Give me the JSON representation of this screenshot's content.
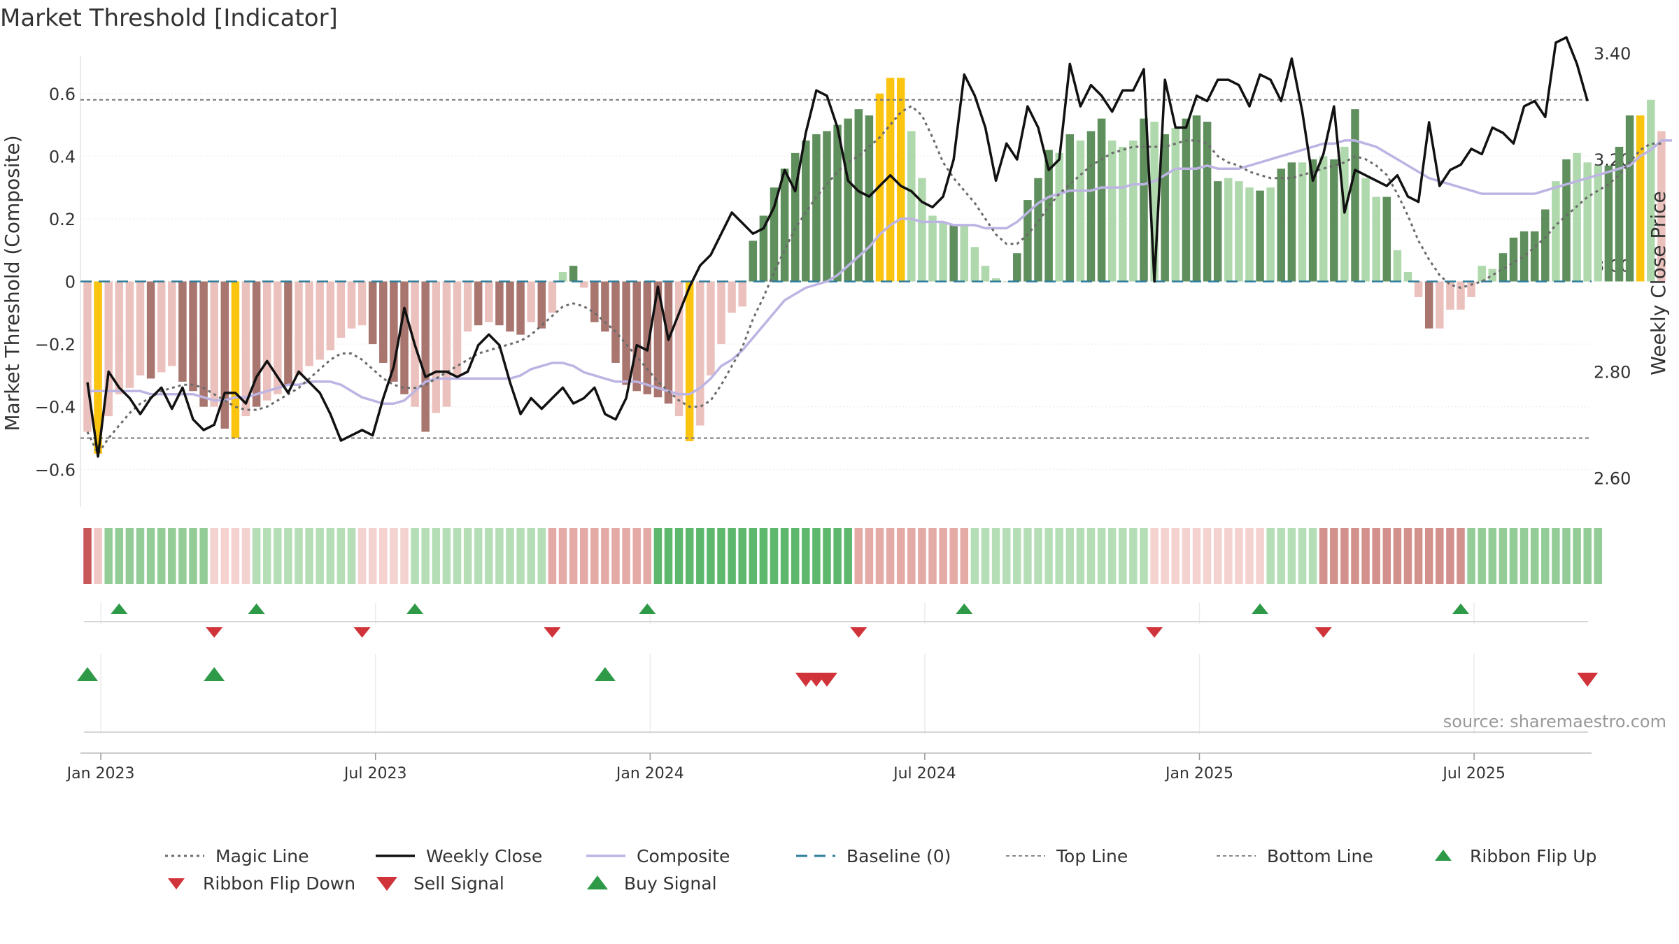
{
  "title": "Market Threshold [Indicator]",
  "source": "source: sharemaestro.com",
  "colors": {
    "bar_dark_green": "#5f8f5c",
    "bar_light_green": "#afd9ac",
    "bar_dark_red": "#a9756f",
    "bar_light_red": "#ebc1bd",
    "bar_gold": "#fbc40f",
    "magic_line": "#6b6b6b",
    "weekly_close": "#111111",
    "composite": "#bdb4e3",
    "baseline": "#2f7d9a",
    "threshold_line": "#777777",
    "signal_up": "#2e9a47",
    "signal_down": "#d0343a"
  },
  "chart_data": {
    "type": "bar",
    "left_axis": {
      "label": "Market Threshold (Composite)",
      "range": [
        -0.72,
        0.72
      ],
      "ticks": [
        {
          "value": 0.6,
          "label": "0.6"
        },
        {
          "value": 0.4,
          "label": "0.4"
        },
        {
          "value": 0.2,
          "label": "0.2"
        },
        {
          "value": 0,
          "label": "0"
        },
        {
          "value": -0.2,
          "label": "−0.2"
        },
        {
          "value": -0.4,
          "label": "−0.4"
        },
        {
          "value": -0.6,
          "label": "−0.6"
        }
      ]
    },
    "right_axis": {
      "label": "Weekly Close Price",
      "range": [
        2.545,
        3.395
      ],
      "ticks": [
        {
          "value": 3.4,
          "label": "3.40"
        },
        {
          "value": 3.2,
          "label": "3.20"
        },
        {
          "value": 3.0,
          "label": "3.00"
        },
        {
          "value": 2.8,
          "label": "2.80"
        },
        {
          "value": 2.6,
          "label": "2.60"
        }
      ]
    },
    "x_ticks": [
      {
        "week": 1,
        "label": "Jan 2023"
      },
      {
        "week": 27,
        "label": "Jul 2023"
      },
      {
        "week": 53,
        "label": "Jan 2024"
      },
      {
        "week": 79,
        "label": "Jul 2024"
      },
      {
        "week": 105,
        "label": "Jan 2025"
      },
      {
        "week": 131,
        "label": "Jul 2025"
      }
    ],
    "top_line": 0.58,
    "bottom_line": -0.5,
    "bars": [
      -0.48,
      -0.55,
      -0.43,
      -0.36,
      -0.34,
      -0.3,
      -0.31,
      -0.29,
      -0.27,
      -0.32,
      -0.35,
      -0.4,
      -0.4,
      -0.47,
      -0.5,
      -0.43,
      -0.4,
      -0.38,
      -0.36,
      -0.33,
      -0.3,
      -0.27,
      -0.25,
      -0.22,
      -0.18,
      -0.15,
      -0.14,
      -0.2,
      -0.26,
      -0.32,
      -0.36,
      -0.4,
      -0.48,
      -0.42,
      -0.4,
      -0.3,
      -0.16,
      -0.14,
      -0.13,
      -0.14,
      -0.16,
      -0.17,
      -0.13,
      -0.15,
      -0.1,
      0.03,
      0.05,
      -0.02,
      -0.13,
      -0.16,
      -0.26,
      -0.33,
      -0.35,
      -0.36,
      -0.37,
      -0.39,
      -0.43,
      -0.51,
      -0.46,
      -0.3,
      -0.2,
      -0.1,
      -0.08,
      0.13,
      0.21,
      0.3,
      0.36,
      0.41,
      0.45,
      0.47,
      0.48,
      0.5,
      0.52,
      0.55,
      0.53,
      0.6,
      0.65,
      0.65,
      0.48,
      0.33,
      0.21,
      0.19,
      0.18,
      0.18,
      0.11,
      0.05,
      0.01,
      0.0,
      0.09,
      0.26,
      0.33,
      0.42,
      0.41,
      0.47,
      0.45,
      0.48,
      0.52,
      0.45,
      0.43,
      0.45,
      0.52,
      0.51,
      0.47,
      0.49,
      0.52,
      0.53,
      0.51,
      0.32,
      0.33,
      0.32,
      0.3,
      0.29,
      0.3,
      0.36,
      0.38,
      0.38,
      0.39,
      0.4,
      0.39,
      0.43,
      0.55,
      0.33,
      0.27,
      0.27,
      0.1,
      0.03,
      -0.05,
      -0.15,
      -0.15,
      -0.09,
      -0.09,
      -0.05,
      0.05,
      0.04,
      0.09,
      0.14,
      0.16,
      0.16,
      0.23,
      0.32,
      0.39,
      0.41,
      0.38,
      0.37,
      0.37,
      0.43,
      0.53,
      0.53,
      0.58,
      0.48
    ],
    "bar_kinds": [
      "LR",
      "GD",
      "LR",
      "LR",
      "LR",
      "LR",
      "DR",
      "LR",
      "LR",
      "DR",
      "DR",
      "DR",
      "LR",
      "DR",
      "GD",
      "LR",
      "DR",
      "LR",
      "LR",
      "DR",
      "LR",
      "LR",
      "LR",
      "LR",
      "LR",
      "LR",
      "LR",
      "DR",
      "DR",
      "DR",
      "DR",
      "LR",
      "DR",
      "LR",
      "LR",
      "LR",
      "LR",
      "DR",
      "LR",
      "DR",
      "DR",
      "DR",
      "LR",
      "DR",
      "LR",
      "LG",
      "DG",
      "LR",
      "DR",
      "DR",
      "DR",
      "DR",
      "DR",
      "DR",
      "DR",
      "DR",
      "LR",
      "GD",
      "LR",
      "LR",
      "LR",
      "LR",
      "LR",
      "DG",
      "DG",
      "DG",
      "DG",
      "DG",
      "DG",
      "DG",
      "DG",
      "DG",
      "DG",
      "DG",
      "DG",
      "GD",
      "GD",
      "GD",
      "LG",
      "LG",
      "LG",
      "LG",
      "DG",
      "LG",
      "LG",
      "LG",
      "LG",
      "LG",
      "DG",
      "DG",
      "DG",
      "DG",
      "LG",
      "DG",
      "LG",
      "DG",
      "DG",
      "LG",
      "LG",
      "LG",
      "DG",
      "LG",
      "DG",
      "LG",
      "DG",
      "DG",
      "DG",
      "DG",
      "LG",
      "LG",
      "LG",
      "DG",
      "LG",
      "DG",
      "DG",
      "LG",
      "DG",
      "LG",
      "DG",
      "LG",
      "DG",
      "LG",
      "LG",
      "DG",
      "LG",
      "LG",
      "LR",
      "DR",
      "LR",
      "LR",
      "LR",
      "LR",
      "LG",
      "LG",
      "DG",
      "DG",
      "DG",
      "DG",
      "DG",
      "LG",
      "DG",
      "LG",
      "LG",
      "LG",
      "DG",
      "DG",
      "DG",
      "GD",
      "LG"
    ],
    "series": [
      {
        "name": "Magic Line",
        "axis": "left",
        "values": [
          -0.48,
          -0.55,
          -0.5,
          -0.46,
          -0.42,
          -0.39,
          -0.37,
          -0.35,
          -0.34,
          -0.33,
          -0.33,
          -0.34,
          -0.36,
          -0.38,
          -0.4,
          -0.41,
          -0.41,
          -0.4,
          -0.38,
          -0.36,
          -0.34,
          -0.31,
          -0.28,
          -0.25,
          -0.23,
          -0.23,
          -0.25,
          -0.28,
          -0.31,
          -0.33,
          -0.34,
          -0.34,
          -0.33,
          -0.31,
          -0.29,
          -0.27,
          -0.25,
          -0.23,
          -0.22,
          -0.21,
          -0.2,
          -0.19,
          -0.17,
          -0.14,
          -0.11,
          -0.08,
          -0.07,
          -0.08,
          -0.1,
          -0.13,
          -0.16,
          -0.2,
          -0.24,
          -0.28,
          -0.32,
          -0.35,
          -0.38,
          -0.4,
          -0.4,
          -0.38,
          -0.33,
          -0.27,
          -0.21,
          -0.12,
          -0.05,
          0.03,
          0.1,
          0.17,
          0.22,
          0.27,
          0.31,
          0.35,
          0.38,
          0.4,
          0.43,
          0.46,
          0.5,
          0.54,
          0.56,
          0.53,
          0.46,
          0.38,
          0.33,
          0.29,
          0.25,
          0.2,
          0.15,
          0.12,
          0.12,
          0.15,
          0.19,
          0.24,
          0.28,
          0.31,
          0.34,
          0.37,
          0.39,
          0.41,
          0.42,
          0.43,
          0.43,
          0.43,
          0.43,
          0.44,
          0.45,
          0.45,
          0.44,
          0.4,
          0.38,
          0.37,
          0.35,
          0.34,
          0.33,
          0.33,
          0.33,
          0.34,
          0.35,
          0.36,
          0.37,
          0.38,
          0.4,
          0.39,
          0.37,
          0.34,
          0.28,
          0.21,
          0.13,
          0.07,
          0.02,
          -0.01,
          -0.02,
          -0.01,
          0.0,
          0.02,
          0.04,
          0.06,
          0.08,
          0.11,
          0.14,
          0.18,
          0.21,
          0.24,
          0.27,
          0.29,
          0.31,
          0.34,
          0.38,
          0.42,
          0.44,
          0.44
        ]
      },
      {
        "name": "Weekly Close",
        "axis": "right",
        "values": [
          2.78,
          2.64,
          2.8,
          2.77,
          2.75,
          2.72,
          2.75,
          2.77,
          2.73,
          2.77,
          2.71,
          2.69,
          2.7,
          2.76,
          2.76,
          2.74,
          2.79,
          2.82,
          2.79,
          2.76,
          2.8,
          2.78,
          2.76,
          2.72,
          2.67,
          2.68,
          2.69,
          2.68,
          2.75,
          2.81,
          2.92,
          2.85,
          2.79,
          2.8,
          2.8,
          2.79,
          2.8,
          2.85,
          2.87,
          2.85,
          2.78,
          2.72,
          2.75,
          2.73,
          2.75,
          2.77,
          2.74,
          2.75,
          2.77,
          2.72,
          2.71,
          2.75,
          2.85,
          2.84,
          2.96,
          2.86,
          2.91,
          2.96,
          3.0,
          3.02,
          3.06,
          3.1,
          3.08,
          3.06,
          3.07,
          3.11,
          3.18,
          3.14,
          3.25,
          3.33,
          3.32,
          3.26,
          3.16,
          3.14,
          3.13,
          3.15,
          3.17,
          3.15,
          3.14,
          3.12,
          3.11,
          3.13,
          3.2,
          3.36,
          3.32,
          3.26,
          3.16,
          3.23,
          3.2,
          3.3,
          3.26,
          3.18,
          3.2,
          3.38,
          3.3,
          3.34,
          3.32,
          3.29,
          3.33,
          3.33,
          3.37,
          2.97,
          3.35,
          3.26,
          3.26,
          3.32,
          3.31,
          3.35,
          3.35,
          3.34,
          3.3,
          3.36,
          3.35,
          3.31,
          3.39,
          3.29,
          3.16,
          3.21,
          3.3,
          3.1,
          3.18,
          3.17,
          3.16,
          3.15,
          3.17,
          3.13,
          3.12,
          3.27,
          3.15,
          3.18,
          3.19,
          3.22,
          3.21,
          3.26,
          3.25,
          3.23,
          3.3,
          3.31,
          3.28,
          3.42,
          3.43,
          3.38,
          3.31
        ]
      },
      {
        "name": "Composite",
        "axis": "left",
        "values": [
          -0.35,
          -0.35,
          -0.35,
          -0.35,
          -0.35,
          -0.35,
          -0.36,
          -0.36,
          -0.36,
          -0.36,
          -0.36,
          -0.37,
          -0.38,
          -0.38,
          -0.37,
          -0.37,
          -0.36,
          -0.35,
          -0.34,
          -0.33,
          -0.33,
          -0.32,
          -0.32,
          -0.32,
          -0.33,
          -0.35,
          -0.37,
          -0.38,
          -0.39,
          -0.39,
          -0.38,
          -0.35,
          -0.32,
          -0.31,
          -0.31,
          -0.31,
          -0.31,
          -0.31,
          -0.31,
          -0.31,
          -0.31,
          -0.3,
          -0.28,
          -0.27,
          -0.26,
          -0.26,
          -0.27,
          -0.29,
          -0.3,
          -0.31,
          -0.32,
          -0.32,
          -0.32,
          -0.33,
          -0.34,
          -0.35,
          -0.36,
          -0.36,
          -0.34,
          -0.31,
          -0.27,
          -0.25,
          -0.22,
          -0.18,
          -0.14,
          -0.1,
          -0.06,
          -0.04,
          -0.02,
          -0.01,
          0.0,
          0.02,
          0.05,
          0.08,
          0.11,
          0.15,
          0.18,
          0.2,
          0.2,
          0.19,
          0.19,
          0.19,
          0.18,
          0.18,
          0.18,
          0.17,
          0.17,
          0.17,
          0.19,
          0.22,
          0.25,
          0.27,
          0.28,
          0.29,
          0.29,
          0.29,
          0.3,
          0.3,
          0.3,
          0.31,
          0.31,
          0.32,
          0.34,
          0.36,
          0.36,
          0.36,
          0.37,
          0.36,
          0.36,
          0.36,
          0.37,
          0.38,
          0.39,
          0.4,
          0.41,
          0.42,
          0.43,
          0.44,
          0.44,
          0.45,
          0.45,
          0.44,
          0.43,
          0.41,
          0.39,
          0.37,
          0.35,
          0.33,
          0.32,
          0.31,
          0.3,
          0.29,
          0.28,
          0.28,
          0.28,
          0.28,
          0.28,
          0.28,
          0.29,
          0.3,
          0.31,
          0.32,
          0.33,
          0.34,
          0.35,
          0.36,
          0.37,
          0.4,
          0.42,
          0.45,
          0.45
        ]
      }
    ],
    "ribbon": {
      "kinds": [
        "DR",
        "LR",
        "MG",
        "MG",
        "MG",
        "MG",
        "MG",
        "MG",
        "MG",
        "MG",
        "MG",
        "MG",
        "PR",
        "PR",
        "PR",
        "PR",
        "LG",
        "LG",
        "LG",
        "LG",
        "LG",
        "LG",
        "LG",
        "LG",
        "LG",
        "LG",
        "PR",
        "PR",
        "PR",
        "PR",
        "PR",
        "LG",
        "LG",
        "LG",
        "LG",
        "LG",
        "LG",
        "LG",
        "LG",
        "LG",
        "LG",
        "LG",
        "LG",
        "LG",
        "MR",
        "MR",
        "MR",
        "MR",
        "MR",
        "MR",
        "MR",
        "MR",
        "MR",
        "MR",
        "DG",
        "DG",
        "DG",
        "DG",
        "DG",
        "DG",
        "DG",
        "DG",
        "DG",
        "DG",
        "DG",
        "DG",
        "DG",
        "DG",
        "DG",
        "DG",
        "DG",
        "DG",
        "DG",
        "MR",
        "MR",
        "MR",
        "MR",
        "MR",
        "MR",
        "MR",
        "MR",
        "MR",
        "MR",
        "MR",
        "LG",
        "LG",
        "LG",
        "LG",
        "LG",
        "LG",
        "LG",
        "LG",
        "LG",
        "LG",
        "LG",
        "LG",
        "LG",
        "LG",
        "LG",
        "LG",
        "LG",
        "PR",
        "PR",
        "PR",
        "PR",
        "PR",
        "PR",
        "PR",
        "PR",
        "PR",
        "PR",
        "PR",
        "LG",
        "LG",
        "LG",
        "LG",
        "LG",
        "DR2",
        "DR2",
        "DR2",
        "DR2",
        "DR2",
        "DR2",
        "DR2",
        "DR2",
        "DR2",
        "DR2",
        "DR2",
        "DR2",
        "DR2",
        "DR2",
        "MG",
        "MG",
        "MG",
        "MG",
        "MG",
        "MG",
        "MG",
        "MG",
        "MG",
        "MG",
        "MG",
        "MG",
        "MG"
      ],
      "colors": {
        "DR": "#c8575a",
        "LR": "#f0c8c5",
        "PR": "#f3d2d0",
        "MR": "#e3aaa6",
        "DR2": "#d3918d",
        "LG": "#b5deb7",
        "MG": "#94cc98",
        "DG": "#5db86d"
      }
    },
    "ribbon_flip_up_weeks": [
      3,
      16,
      31,
      53,
      83,
      111,
      130
    ],
    "ribbon_flip_down_weeks": [
      12,
      26,
      44,
      73,
      101,
      117
    ],
    "buy_signal_weeks": [
      0,
      12,
      49
    ],
    "sell_signal_weeks": [
      68,
      69,
      70,
      142
    ],
    "legend": [
      {
        "label": "Magic Line",
        "kind": "dotted-line"
      },
      {
        "label": "Weekly Close",
        "kind": "solid-line"
      },
      {
        "label": "Composite",
        "kind": "light-line"
      },
      {
        "label": "Baseline (0)",
        "kind": "dashed-line"
      },
      {
        "label": "Top Line",
        "kind": "fine-dash"
      },
      {
        "label": "Bottom Line",
        "kind": "fine-dash"
      },
      {
        "label": "Ribbon Flip Up",
        "kind": "tri-up-small"
      },
      {
        "label": "Ribbon Flip Down",
        "kind": "tri-down-small"
      },
      {
        "label": "Sell Signal",
        "kind": "tri-down-large"
      },
      {
        "label": "Buy Signal",
        "kind": "tri-up-large"
      }
    ]
  }
}
